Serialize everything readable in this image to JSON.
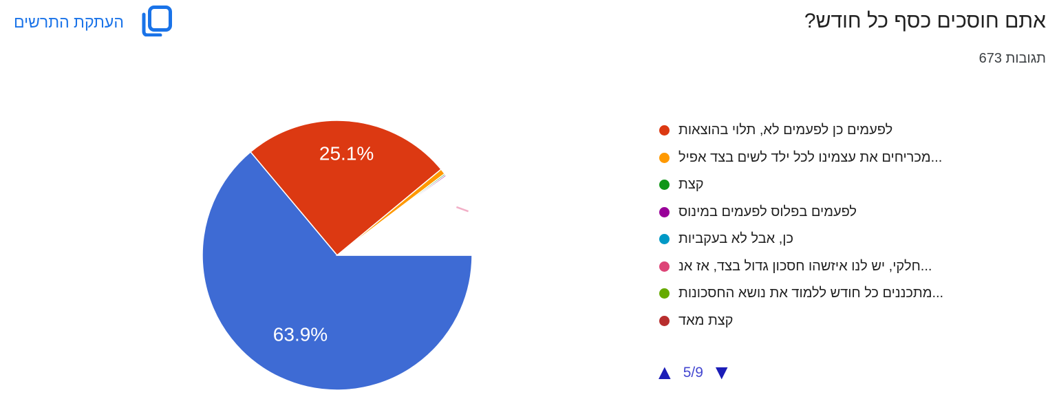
{
  "header": {
    "title": "אתם חוסכים כסף כל חודש?",
    "responses_count": "673 תגובות"
  },
  "toolbar": {
    "copy_label": "העתקת התרשים"
  },
  "legend": {
    "items": [
      {
        "label": "לפעמים כן לפעמים לא, תלוי בהוצאות",
        "color": "#DC3912"
      },
      {
        "label": "מכריחים את עצמינו לכל ילד לשים בצד אפיל...",
        "color": "#FF9900"
      },
      {
        "label": "קצת",
        "color": "#109618"
      },
      {
        "label": "לפעמים בפלוס לפעמים במינוס",
        "color": "#990099"
      },
      {
        "label": "כן, אבל לא בעקביות",
        "color": "#0099C6"
      },
      {
        "label": "חלקי, יש לנו איזשהו חסכון גדול בצד, אז אנ...",
        "color": "#DD4477"
      },
      {
        "label": "מתכננים כל חודש ללמוד את נושא החסכונות...",
        "color": "#66AA00"
      },
      {
        "label": "קצת מאד",
        "color": "#B82E2E"
      }
    ]
  },
  "pagination": {
    "up_symbol": "▲",
    "page_label": "5/9",
    "down_symbol": "▼"
  },
  "chart_data": {
    "type": "pie",
    "title": "אתם חוסכים כסף כל חודש?",
    "responses_label": "673 תגובות",
    "start_angle_deg": 0,
    "direction": "clockwise",
    "separator_color": "#ffffff",
    "legend_position": "right",
    "slices": [
      {
        "label": "",
        "pct": 63.9,
        "color": "#3E6BD4",
        "data_label": "63.9%",
        "label_r": 0.645
      },
      {
        "label": "לפעמים כן לפעמים לא, תלוי בהוצאות",
        "pct": 25.1,
        "color": "#DC3912",
        "data_label": "25.1%",
        "label_r": 0.76
      },
      {
        "label": "מכריחים את עצמינו לכל ילד לשים בצד אפיל...",
        "pct": 0.67,
        "color": "#FF9900"
      },
      {
        "label": "קצת",
        "pct": 0.17,
        "color": "#109618"
      },
      {
        "label": "לפעמים בפלוס לפעמים במינוס",
        "pct": 0.17,
        "color": "#990099"
      },
      {
        "label": "",
        "pct": 9.99,
        "color": "#FFFFFF"
      }
    ],
    "rim_fragment": {
      "color": "#F2AFC7",
      "a1": -22,
      "r1": 187,
      "a2": -18.5,
      "r2": 201
    }
  }
}
